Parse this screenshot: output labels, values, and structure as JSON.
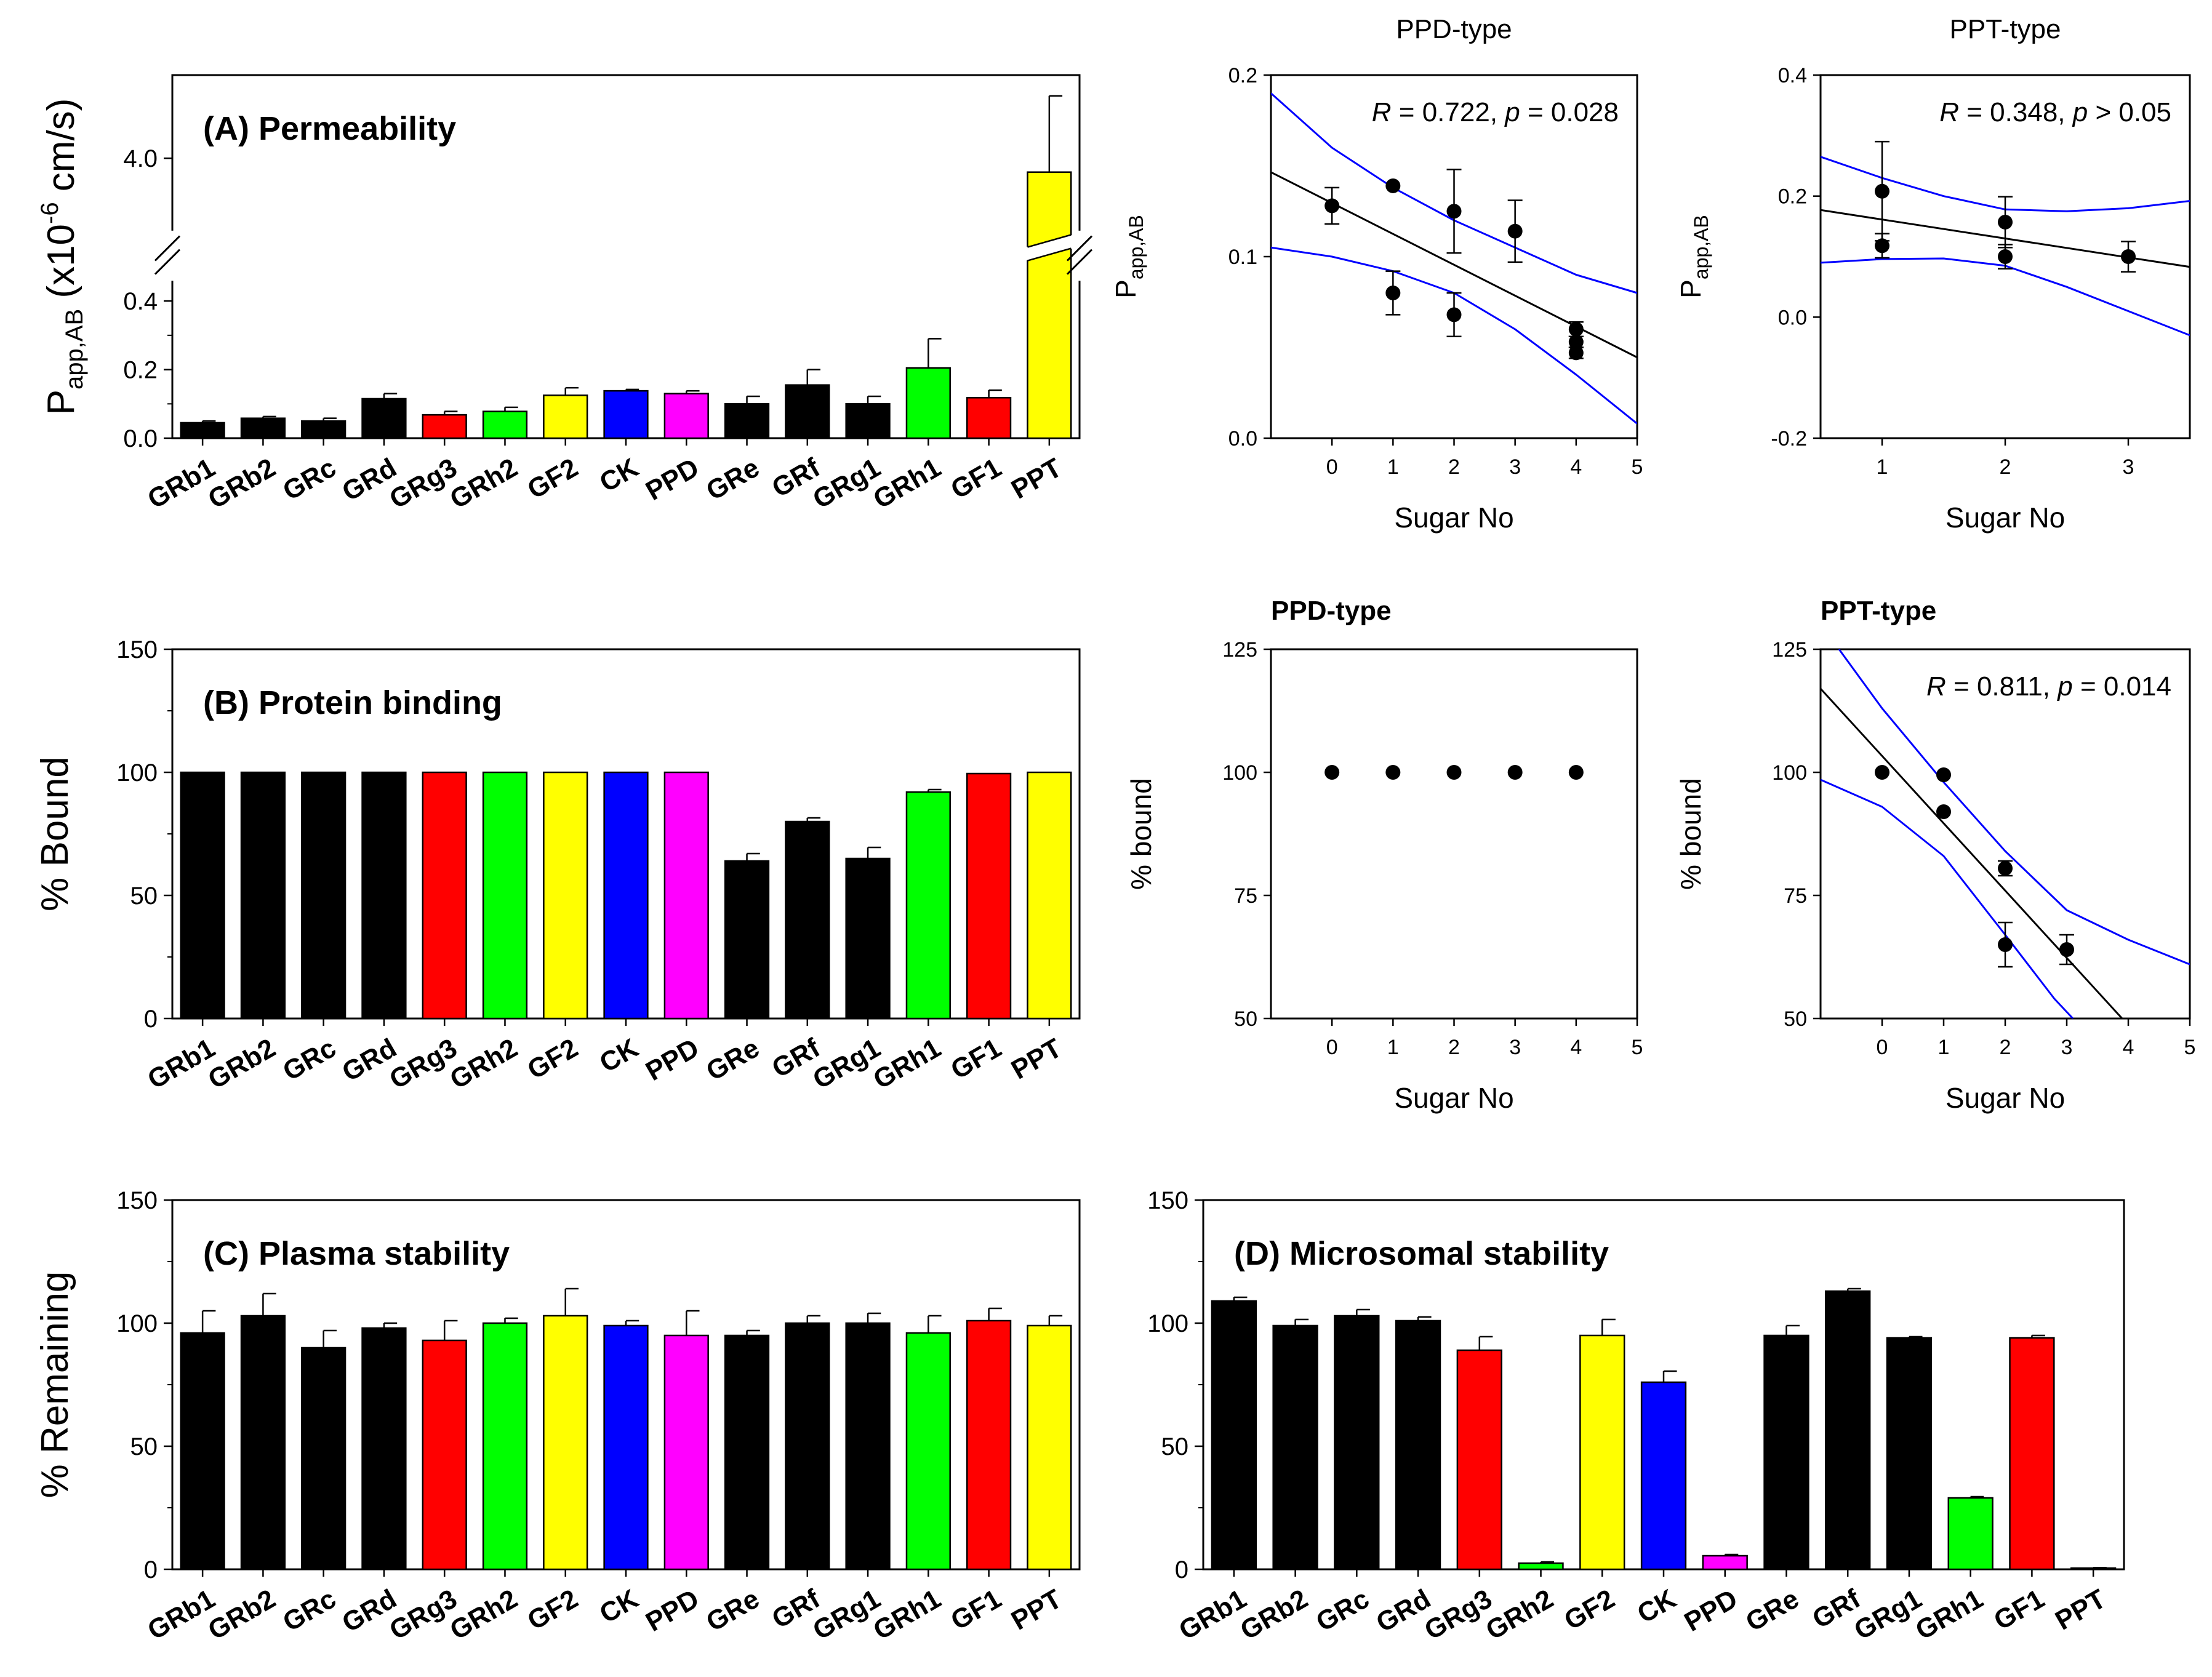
{
  "figure": {
    "description_note": ""
  },
  "chart_data": [
    {
      "id": "A",
      "type": "bar",
      "title": "(A) Permeability",
      "ylabel": "P",
      "ylabel_sub": "app,AB",
      "ylabel_rest": " (x10",
      "ylabel_sup": "-6",
      "ylabel_unit": " cm/s)",
      "categories": [
        "GRb1",
        "GRb2",
        "GRc",
        "GRd",
        "GRg3",
        "GRh2",
        "GF2",
        "CK",
        "PPD",
        "GRe",
        "GRf",
        "GRg1",
        "GRh1",
        "GF1",
        "PPT"
      ],
      "colors": [
        "#000000",
        "#000000",
        "#000000",
        "#000000",
        "#ff0000",
        "#00ff00",
        "#ffff00",
        "#0000ff",
        "#ff00ff",
        "#000000",
        "#000000",
        "#000000",
        "#00ff00",
        "#ff0000",
        "#ffff00"
      ],
      "values": [
        0.045,
        0.058,
        0.05,
        0.115,
        0.068,
        0.078,
        0.125,
        0.138,
        0.13,
        0.1,
        0.155,
        0.1,
        0.205,
        0.118,
        3.9
      ],
      "errors": [
        0.005,
        0.005,
        0.008,
        0.015,
        0.01,
        0.012,
        0.022,
        0.004,
        0.008,
        0.022,
        0.045,
        0.022,
        0.085,
        0.022,
        0.55
      ],
      "y_lower_ticks": [
        "0.0",
        "0.2",
        "0.4"
      ],
      "y_upper_ticks": [
        "4.0"
      ],
      "axis_break": [
        0.45,
        3.5
      ],
      "ylim": [
        0,
        4.6
      ]
    },
    {
      "id": "A-PPD",
      "type": "scatter",
      "title": "PPD-type",
      "xlabel": "Sugar No",
      "ylabel": "P",
      "ylabel_sub": "app,AB",
      "annotation": {
        "R": "R",
        "rtext": " = 0.722, ",
        "p": "p",
        "ptext": " = 0.028"
      },
      "xlim": [
        -1,
        5
      ],
      "ylim": [
        0,
        0.2
      ],
      "x_ticks": [
        "0",
        "1",
        "2",
        "3",
        "4",
        "5"
      ],
      "y_ticks": [
        "0.0",
        "0.1",
        "0.2"
      ],
      "points": [
        {
          "x": 0,
          "y": 0.128,
          "err": 0.01
        },
        {
          "x": 1,
          "y": 0.139,
          "err": 0.0
        },
        {
          "x": 1,
          "y": 0.08,
          "err": 0.012
        },
        {
          "x": 2,
          "y": 0.125,
          "err": 0.023
        },
        {
          "x": 2,
          "y": 0.068,
          "err": 0.012
        },
        {
          "x": 3,
          "y": 0.114,
          "err": 0.017
        },
        {
          "x": 4,
          "y": 0.06,
          "err": 0.004
        },
        {
          "x": 4,
          "y": 0.053,
          "err": 0.003
        },
        {
          "x": 4,
          "y": 0.047,
          "err": 0.003
        }
      ],
      "fit": {
        "x0": -1,
        "y0": 0.1465,
        "x1": 5,
        "y1": 0.0445
      },
      "ci_upper": [
        [
          -1,
          0.19
        ],
        [
          0,
          0.16
        ],
        [
          1,
          0.138
        ],
        [
          2,
          0.12
        ],
        [
          3,
          0.105
        ],
        [
          4,
          0.09
        ],
        [
          5,
          0.08
        ]
      ],
      "ci_lower": [
        [
          -1,
          0.105
        ],
        [
          0,
          0.1
        ],
        [
          1,
          0.092
        ],
        [
          2,
          0.08
        ],
        [
          3,
          0.06
        ],
        [
          4,
          0.035
        ],
        [
          5,
          0.008
        ]
      ]
    },
    {
      "id": "A-PPT",
      "type": "scatter",
      "title": "PPT-type",
      "xlabel": "Sugar No",
      "ylabel": "P",
      "ylabel_sub": "app,AB",
      "annotation": {
        "R": "R",
        "rtext": " = 0.348, ",
        "p": "p",
        "ptext": " > 0.05"
      },
      "xlim": [
        0.5,
        3.5
      ],
      "ylim": [
        -0.2,
        0.4
      ],
      "x_ticks": [
        "1",
        "2",
        "3"
      ],
      "y_ticks": [
        "-0.2",
        "0.0",
        "0.2",
        "0.4"
      ],
      "points": [
        {
          "x": 1,
          "y": 0.208,
          "err": 0.082
        },
        {
          "x": 1,
          "y": 0.118,
          "err": 0.02
        },
        {
          "x": 2,
          "y": 0.157,
          "err": 0.042
        },
        {
          "x": 2,
          "y": 0.1,
          "err": 0.02
        },
        {
          "x": 3,
          "y": 0.1,
          "err": 0.025
        }
      ],
      "fit": {
        "x0": 0.5,
        "y0": 0.177,
        "x1": 3.5,
        "y1": 0.083
      },
      "ci_upper": [
        [
          0.5,
          0.265
        ],
        [
          1,
          0.23
        ],
        [
          1.5,
          0.2
        ],
        [
          2,
          0.178
        ],
        [
          2.5,
          0.175
        ],
        [
          3,
          0.18
        ],
        [
          3.5,
          0.192
        ]
      ],
      "ci_lower": [
        [
          0.5,
          0.09
        ],
        [
          1,
          0.096
        ],
        [
          1.5,
          0.097
        ],
        [
          2,
          0.085
        ],
        [
          2.5,
          0.05
        ],
        [
          3,
          0.01
        ],
        [
          3.5,
          -0.03
        ]
      ]
    },
    {
      "id": "B",
      "type": "bar",
      "title": "(B) Protein binding",
      "ylabel": "% Bound",
      "categories": [
        "GRb1",
        "GRb2",
        "GRc",
        "GRd",
        "GRg3",
        "GRh2",
        "GF2",
        "CK",
        "PPD",
        "GRe",
        "GRf",
        "GRg1",
        "GRh1",
        "GF1",
        "PPT"
      ],
      "colors": [
        "#000000",
        "#000000",
        "#000000",
        "#000000",
        "#ff0000",
        "#00ff00",
        "#ffff00",
        "#0000ff",
        "#ff00ff",
        "#000000",
        "#000000",
        "#000000",
        "#00ff00",
        "#ff0000",
        "#ffff00"
      ],
      "values": [
        100,
        100,
        100,
        100,
        100,
        100,
        100,
        100,
        100,
        64,
        80,
        65,
        92,
        99.5,
        100
      ],
      "errors": [
        0,
        0,
        0,
        0,
        0,
        0,
        0,
        0,
        0,
        3,
        1.5,
        4.5,
        1,
        0,
        0
      ],
      "y_ticks": [
        "0",
        "50",
        "100",
        "150"
      ],
      "ylim": [
        0,
        150
      ]
    },
    {
      "id": "B-PPD",
      "type": "scatter",
      "title": "PPD-type",
      "xlabel": "Sugar No",
      "ylabel": "% bound",
      "xlim": [
        -1,
        5
      ],
      "ylim": [
        50,
        125
      ],
      "x_ticks": [
        "0",
        "1",
        "2",
        "3",
        "4",
        "5"
      ],
      "y_ticks": [
        "50",
        "75",
        "100",
        "125"
      ],
      "points": [
        {
          "x": 0,
          "y": 100,
          "err": 0
        },
        {
          "x": 1,
          "y": 100,
          "err": 0
        },
        {
          "x": 2,
          "y": 100,
          "err": 0
        },
        {
          "x": 3,
          "y": 100,
          "err": 0
        },
        {
          "x": 4,
          "y": 100,
          "err": 0
        }
      ]
    },
    {
      "id": "B-PPT",
      "type": "scatter",
      "title": "PPT-type",
      "xlabel": "Sugar No",
      "ylabel": "% bound",
      "annotation": {
        "R": "R",
        "rtext": " = 0.811, ",
        "p": "p",
        "ptext": " = 0.014"
      },
      "xlim": [
        -1,
        5
      ],
      "ylim": [
        50,
        125
      ],
      "x_ticks": [
        "0",
        "1",
        "2",
        "3",
        "4",
        "5"
      ],
      "y_ticks": [
        "50",
        "75",
        "100",
        "125"
      ],
      "points": [
        {
          "x": 0,
          "y": 100,
          "err": 0
        },
        {
          "x": 1,
          "y": 99.5,
          "err": 0
        },
        {
          "x": 1,
          "y": 92,
          "err": 0
        },
        {
          "x": 2,
          "y": 80.5,
          "err": 1.5
        },
        {
          "x": 2,
          "y": 65,
          "err": 4.5
        },
        {
          "x": 3,
          "y": 64,
          "err": 3
        }
      ],
      "fit": {
        "x0": -1,
        "y0": 117,
        "x1": 3.9,
        "y1": 50
      },
      "ci_upper": [
        [
          -0.7,
          125
        ],
        [
          0,
          113
        ],
        [
          1,
          98
        ],
        [
          2,
          84
        ],
        [
          3,
          72
        ],
        [
          4,
          66
        ],
        [
          5,
          61
        ]
      ],
      "ci_lower": [
        [
          -1,
          98.5
        ],
        [
          0,
          93
        ],
        [
          1,
          83
        ],
        [
          2,
          67
        ],
        [
          2.8,
          54
        ],
        [
          3.1,
          50
        ]
      ]
    },
    {
      "id": "C",
      "type": "bar",
      "title": "(C) Plasma stability",
      "ylabel": "% Remaining",
      "categories": [
        "GRb1",
        "GRb2",
        "GRc",
        "GRd",
        "GRg3",
        "GRh2",
        "GF2",
        "CK",
        "PPD",
        "GRe",
        "GRf",
        "GRg1",
        "GRh1",
        "GF1",
        "PPT"
      ],
      "colors": [
        "#000000",
        "#000000",
        "#000000",
        "#000000",
        "#ff0000",
        "#00ff00",
        "#ffff00",
        "#0000ff",
        "#ff00ff",
        "#000000",
        "#000000",
        "#000000",
        "#00ff00",
        "#ff0000",
        "#ffff00"
      ],
      "values": [
        96,
        103,
        90,
        98,
        93,
        100,
        103,
        99,
        95,
        95,
        100,
        100,
        96,
        101,
        99
      ],
      "errors": [
        9,
        9,
        7,
        2,
        8,
        2,
        11,
        2,
        10,
        2,
        3,
        4,
        7,
        5,
        4
      ],
      "y_ticks": [
        "0",
        "50",
        "100",
        "150"
      ],
      "ylim": [
        0,
        150
      ]
    },
    {
      "id": "D",
      "type": "bar",
      "title": "(D) Microsomal stability",
      "ylabel": "",
      "categories": [
        "GRb1",
        "GRb2",
        "GRc",
        "GRd",
        "GRg3",
        "GRh2",
        "GF2",
        "CK",
        "PPD",
        "GRe",
        "GRf",
        "GRg1",
        "GRh1",
        "GF1",
        "PPT"
      ],
      "colors": [
        "#000000",
        "#000000",
        "#000000",
        "#000000",
        "#ff0000",
        "#00ff00",
        "#ffff00",
        "#0000ff",
        "#ff00ff",
        "#000000",
        "#000000",
        "#000000",
        "#00ff00",
        "#ff0000",
        "#ffff00"
      ],
      "values": [
        109,
        99,
        103,
        101,
        89,
        2.5,
        95,
        76,
        5.5,
        95,
        113,
        94,
        29,
        94,
        0.5
      ],
      "errors": [
        1.5,
        2.5,
        2.5,
        1.5,
        5.5,
        0.5,
        6.5,
        4.5,
        0.5,
        4,
        1,
        0.5,
        0.5,
        1,
        0.2
      ],
      "y_ticks": [
        "0",
        "50",
        "100",
        "150"
      ],
      "ylim": [
        0,
        150
      ]
    }
  ]
}
